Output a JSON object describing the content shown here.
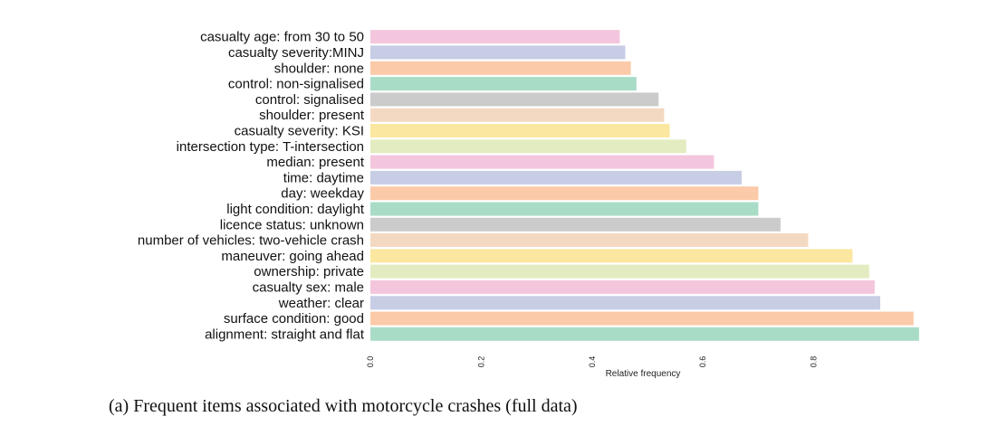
{
  "chart_data": {
    "type": "bar",
    "orientation": "horizontal",
    "title": "",
    "xlabel": "Relative frequency",
    "ylabel": "",
    "xlim": [
      0,
      1
    ],
    "xticks": [
      "0.0",
      "0.2",
      "0.4",
      "0.6",
      "0.8"
    ],
    "grid": false,
    "categories": [
      "casualty age: from 30 to 50",
      "casualty severity:MINJ",
      "shoulder: none",
      "control: non-signalised",
      "control: signalised",
      "shoulder: present",
      "casualty severity: KSI",
      "intersection type: T-intersection",
      "median: present",
      "time: daytime",
      "day: weekday",
      "light condition: daylight",
      "licence status: unknown",
      "number of vehicles: two-vehicle crash",
      "maneuver: going ahead",
      "ownership: private",
      "casualty sex: male",
      "weather: clear",
      "surface condition: good",
      "alignment: straight and flat"
    ],
    "values": [
      0.45,
      0.46,
      0.47,
      0.48,
      0.52,
      0.53,
      0.54,
      0.57,
      0.62,
      0.67,
      0.7,
      0.7,
      0.74,
      0.79,
      0.87,
      0.9,
      0.91,
      0.92,
      0.98,
      0.99
    ],
    "colors": [
      "#f4c6dd",
      "#c7cde4",
      "#fbcaa8",
      "#a9dcc6",
      "#cbcbcb",
      "#f4d9c2",
      "#fbe79f",
      "#e3ecc1",
      "#f4c6dd",
      "#c7cde4",
      "#fbcaa8",
      "#a9dcc6",
      "#cbcbcb",
      "#f4d9c2",
      "#fbe79f",
      "#e3ecc1",
      "#f4c6dd",
      "#c7cde4",
      "#fbcaa8",
      "#a9dcc6"
    ]
  },
  "caption": "(a)  Frequent items associated with motorcycle crashes (full data)"
}
